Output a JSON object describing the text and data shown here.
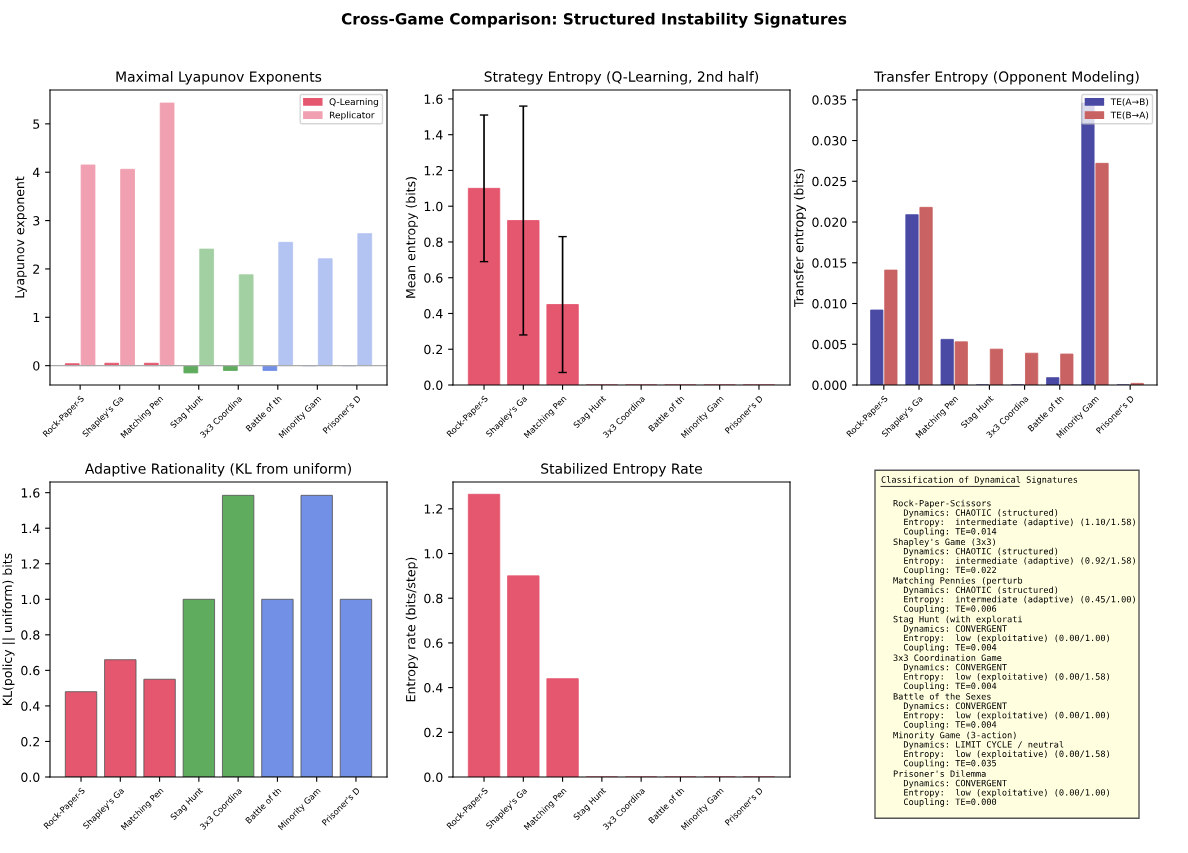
{
  "chart_data": [
    {
      "type": "other",
      "title": "Cross-Game Comparison: Structured Instability Signatures"
    },
    {
      "type": "bar",
      "title": "Maximal Lyapunov Exponents",
      "ylabel": "Lyapunov exponent",
      "categories": [
        "Rock-Paper-S",
        "Shapley's Ga",
        "Matching Pen",
        "Stag Hunt",
        "3x3 Coordina",
        "Battle of th",
        "Minority Gam",
        "Prisoner's D"
      ],
      "series": [
        {
          "name": "Q-Learning",
          "color": "#e5576f",
          "colors": [
            "#e5576f",
            "#e5576f",
            "#e5576f",
            "#5fac5f",
            "#5fac5f",
            "#7290e6",
            "#7290e6",
            "#7290e6"
          ],
          "values": [
            0.04,
            0.05,
            0.05,
            -0.15,
            -0.1,
            -0.1,
            0,
            0
          ]
        },
        {
          "name": "Replicator",
          "color": "#f0a0b0",
          "colors": [
            "#f0a0b0",
            "#f0a0b0",
            "#f0a0b0",
            "#a3d0a3",
            "#a3d0a3",
            "#b3c3f2",
            "#b3c3f2",
            "#b3c3f2"
          ],
          "values": [
            4.15,
            4.06,
            5.43,
            2.41,
            1.88,
            2.55,
            2.21,
            2.73
          ]
        }
      ],
      "ylim": [
        -0.4,
        5.7
      ],
      "yticks": [
        0,
        1,
        2,
        3,
        4,
        5
      ],
      "ref_lines": [
        {
          "axis": "y",
          "value": 0,
          "color": "#aaaaaa"
        }
      ],
      "legend": "top right",
      "grid": false
    },
    {
      "type": "bar",
      "title": "Strategy Entropy (Q-Learning, 2nd half)",
      "ylabel": "Mean entropy (bits)",
      "categories": [
        "Rock-Paper-S",
        "Shapley's Ga",
        "Matching Pen",
        "Stag Hunt",
        "3x3 Coordina",
        "Battle of th",
        "Minority Gam",
        "Prisoner's D"
      ],
      "values": [
        1.1,
        0.92,
        0.45,
        0,
        0,
        0,
        0,
        0
      ],
      "color": "#e5576f",
      "errors": [
        0.41,
        0.64,
        0.38,
        null,
        null,
        null,
        null,
        null
      ],
      "ylim": [
        0,
        1.65
      ],
      "yticks": [
        {
          "value": 0,
          "label": "0.0"
        },
        {
          "value": 0.2,
          "label": "0.2"
        },
        {
          "value": 0.4,
          "label": "0.4"
        },
        {
          "value": 0.6,
          "label": "0.6"
        },
        {
          "value": 0.8,
          "label": "0.8"
        },
        {
          "value": 1.0,
          "label": "1.0"
        },
        {
          "value": 1.2,
          "label": "1.2"
        },
        {
          "value": 1.4,
          "label": "1.4"
        },
        {
          "value": 1.6,
          "label": "1.6"
        }
      ],
      "grid": false
    },
    {
      "type": "bar",
      "title": "Transfer Entropy (Opponent Modeling)",
      "ylabel": "Transfer entropy (bits)",
      "categories": [
        "Rock-Paper-S",
        "Shapley's Ga",
        "Matching Pen",
        "Stag Hunt",
        "3x3 Coordina",
        "Battle of th",
        "Minority Gam",
        "Prisoner's D"
      ],
      "series": [
        {
          "name": "TE(A→B)",
          "color": "#4a4aa5",
          "values": [
            0.0092,
            0.0209,
            0.0056,
            0,
            0,
            0.0009,
            0.0346,
            0
          ]
        },
        {
          "name": "TE(B→A)",
          "color": "#c96262",
          "values": [
            0.0141,
            0.0218,
            0.0053,
            0.0044,
            0.0039,
            0.0038,
            0.0272,
            0.0002
          ]
        }
      ],
      "ylim": [
        0,
        0.0362
      ],
      "yticks": [
        {
          "value": 0,
          "label": "0.000"
        },
        {
          "value": 0.005,
          "label": "0.005"
        },
        {
          "value": 0.01,
          "label": "0.010"
        },
        {
          "value": 0.015,
          "label": "0.015"
        },
        {
          "value": 0.02,
          "label": "0.020"
        },
        {
          "value": 0.025,
          "label": "0.025"
        },
        {
          "value": 0.03,
          "label": "0.030"
        },
        {
          "value": 0.035,
          "label": "0.035"
        }
      ],
      "legend": "top right",
      "grid": false
    },
    {
      "type": "bar",
      "title": "Adaptive Rationality (KL from uniform)",
      "ylabel": "KL(policy || uniform) bits",
      "categories": [
        "Rock-Paper-S",
        "Shapley's Ga",
        "Matching Pen",
        "Stag Hunt",
        "3x3 Coordina",
        "Battle of th",
        "Minority Gam",
        "Prisoner's D"
      ],
      "values": [
        0.48,
        0.66,
        0.55,
        1.0,
        1.585,
        1.0,
        1.585,
        1.0
      ],
      "colors": [
        "#e5576f",
        "#e5576f",
        "#e5576f",
        "#5fac5f",
        "#5fac5f",
        "#7290e6",
        "#7290e6",
        "#7290e6"
      ],
      "ylim": [
        0,
        1.66
      ],
      "yticks": [
        {
          "value": 0,
          "label": "0.0"
        },
        {
          "value": 0.2,
          "label": "0.2"
        },
        {
          "value": 0.4,
          "label": "0.4"
        },
        {
          "value": 0.6,
          "label": "0.6"
        },
        {
          "value": 0.8,
          "label": "0.8"
        },
        {
          "value": 1.0,
          "label": "1.0"
        },
        {
          "value": 1.2,
          "label": "1.2"
        },
        {
          "value": 1.4,
          "label": "1.4"
        },
        {
          "value": 1.6,
          "label": "1.6"
        }
      ],
      "grid": false
    },
    {
      "type": "bar",
      "title": "Stabilized Entropy Rate",
      "ylabel": "Entropy rate (bits/step)",
      "categories": [
        "Rock-Paper-S",
        "Shapley's Ga",
        "Matching Pen",
        "Stag Hunt",
        "3x3 Coordina",
        "Battle of th",
        "Minority Gam",
        "Prisoner's D"
      ],
      "values": [
        1.265,
        0.9,
        0.44,
        0,
        0,
        0,
        0,
        0
      ],
      "color": "#e5576f",
      "ylim": [
        0,
        1.32
      ],
      "yticks": [
        {
          "value": 0,
          "label": "0.0"
        },
        {
          "value": 0.2,
          "label": "0.2"
        },
        {
          "value": 0.4,
          "label": "0.4"
        },
        {
          "value": 0.6,
          "label": "0.6"
        },
        {
          "value": 0.8,
          "label": "0.8"
        },
        {
          "value": 1.0,
          "label": "1.0"
        },
        {
          "value": 1.2,
          "label": "1.2"
        }
      ],
      "grid": false
    },
    {
      "type": "other",
      "title": "Classification of Dynamical Signatures",
      "annotations": [
        "Rock-Paper-Scissors\n  Dynamics: CHAOTIC (structured)\n  Entropy:  intermediate (adaptive) (1.10/1.58)\n  Coupling: TE=0.014",
        "Shapley's Game (3x3)\n  Dynamics: CHAOTIC (structured)\n  Entropy:  intermediate (adaptive) (0.92/1.58)\n  Coupling: TE=0.022",
        "Matching Pennies (perturb\n  Dynamics: CHAOTIC (structured)\n  Entropy:  intermediate (adaptive) (0.45/1.00)\n  Coupling: TE=0.006",
        "Stag Hunt (with explorati\n  Dynamics: CONVERGENT\n  Entropy:  low (exploitative) (0.00/1.00)\n  Coupling: TE=0.004",
        "3x3 Coordination Game\n  Dynamics: CONVERGENT\n  Entropy:  low (exploitative) (0.00/1.58)\n  Coupling: TE=0.004",
        "Battle of the Sexes\n  Dynamics: CONVERGENT\n  Entropy:  low (exploitative) (0.00/1.00)\n  Coupling: TE=0.004",
        "Minority Game (3-action)\n  Dynamics: LIMIT CYCLE / neutral\n  Entropy:  low (exploitative) (0.00/1.58)\n  Coupling: TE=0.035",
        "Prisoner's Dilemma\n  Dynamics: CONVERGENT\n  Entropy:  low (exploitative) (0.00/1.00)\n  Coupling: TE=0.000"
      ]
    }
  ]
}
